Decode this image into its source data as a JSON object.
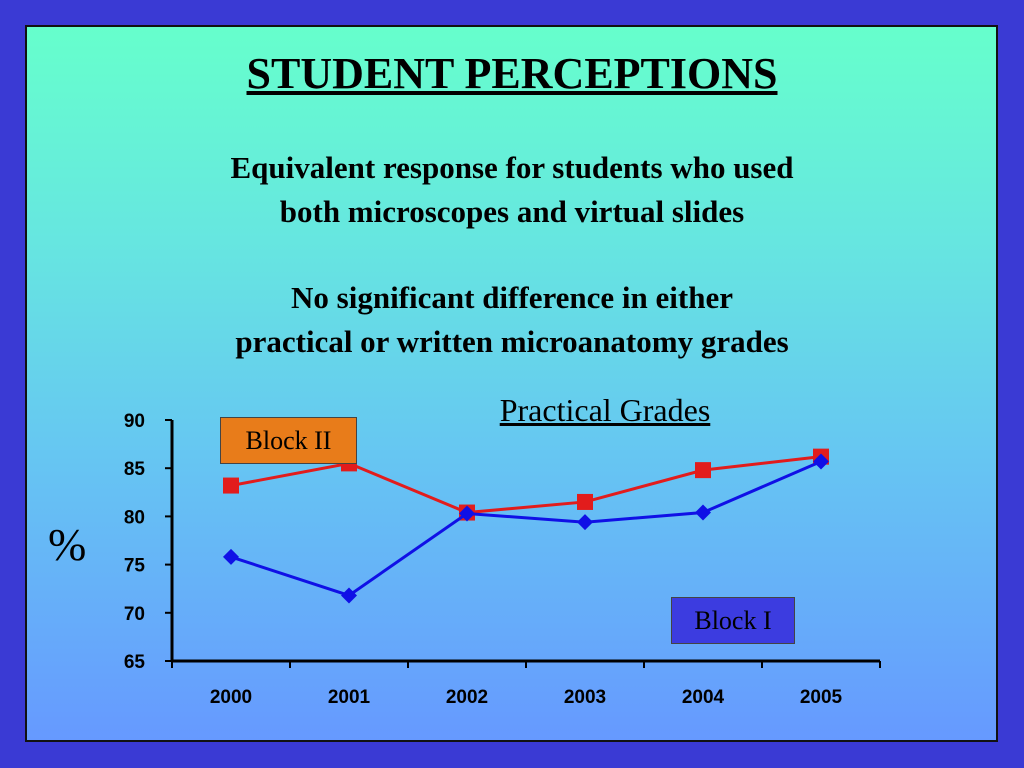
{
  "slide": {
    "title": "STUDENT PERCEPTIONS",
    "para1_line1": "Equivalent response for students who used",
    "para1_line2": "both microscopes and virtual slides",
    "para2_line1": "No significant difference in either",
    "para2_line2": "practical or written microanatomy grades",
    "percent_label": "%"
  },
  "colors": {
    "frame": "#3a3ad4",
    "block_ii": "#e21c1c",
    "block_i": "#1010e6",
    "block_ii_box": "#e87c1a",
    "block_i_box": "#3c3ce0"
  },
  "chart_data": {
    "type": "line",
    "title": "Practical Grades",
    "ylabel": "%",
    "categories": [
      "2000",
      "2001",
      "2002",
      "2003",
      "2004",
      "2005"
    ],
    "ylim": [
      65,
      90
    ],
    "yticks": [
      "65",
      "70",
      "75",
      "80",
      "85",
      "90"
    ],
    "grid": false,
    "series": [
      {
        "name": "Block II",
        "marker": "square",
        "values": [
          83.2,
          85.5,
          80.4,
          81.5,
          84.8,
          86.2
        ]
      },
      {
        "name": "Block I",
        "marker": "diamond",
        "values": [
          75.8,
          71.8,
          80.3,
          79.4,
          80.4,
          85.7
        ]
      }
    ]
  }
}
